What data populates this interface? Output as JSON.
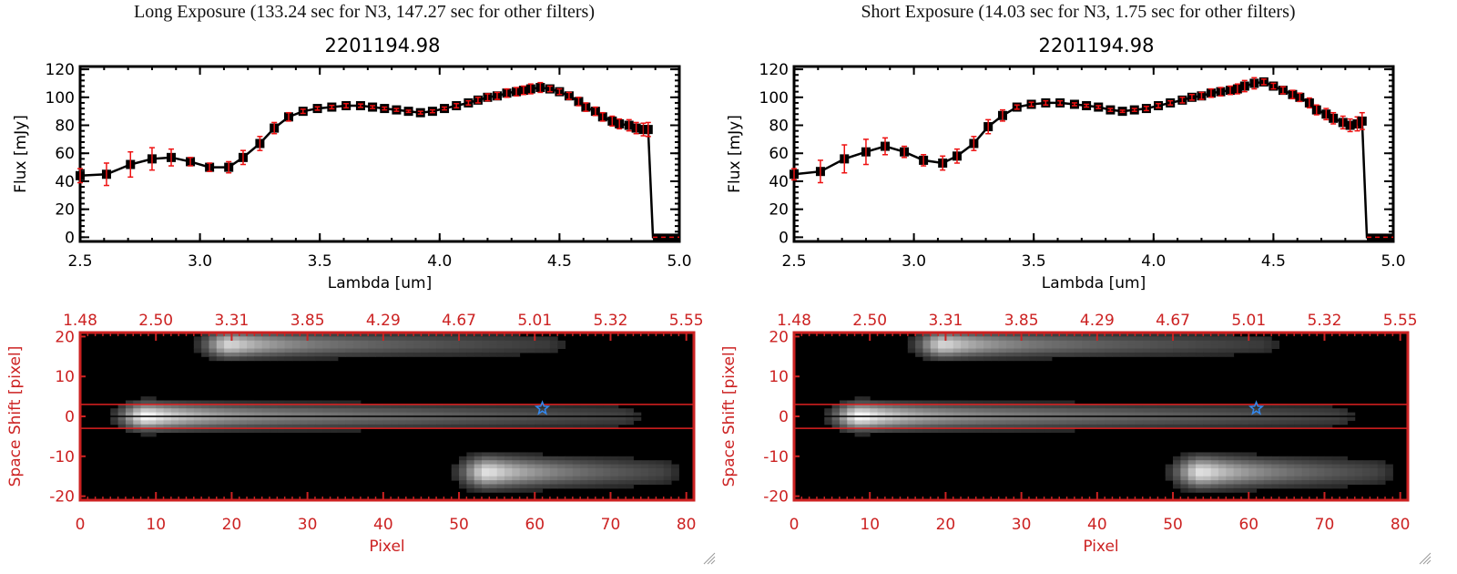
{
  "panels": [
    {
      "id": "long",
      "title": "Long Exposure (133.24 sec for N3, 147.27 sec for other filters)",
      "object_id": "2201194.98"
    },
    {
      "id": "short",
      "title": "Short Exposure (14.03 sec for N3, 1.75 sec for other filters)",
      "object_id": "2201194.98"
    }
  ],
  "colors": {
    "axis_red": "#cc2222",
    "errorbar_red": "#ee1111",
    "line_black": "#000000",
    "star_blue": "#3388ee"
  },
  "chart_data": [
    {
      "type": "line",
      "panel": "long",
      "title": "2201194.98",
      "xlabel": "Lambda [um]",
      "ylabel": "Flux [mJy]",
      "xlim": [
        2.5,
        5.0
      ],
      "ylim": [
        -3,
        122
      ],
      "xticks": [
        "2.5",
        "3.0",
        "3.5",
        "4.0",
        "4.5",
        "5.0"
      ],
      "xtick_values": [
        2.5,
        3.0,
        3.5,
        4.0,
        4.5,
        5.0
      ],
      "yticks": [
        "0",
        "20",
        "40",
        "60",
        "80",
        "100",
        "120"
      ],
      "ytick_values": [
        0,
        20,
        40,
        60,
        80,
        100,
        120
      ],
      "grid": false,
      "series": [
        {
          "name": "flux",
          "x": [
            2.5,
            2.61,
            2.71,
            2.8,
            2.88,
            2.96,
            3.04,
            3.12,
            3.18,
            3.25,
            3.31,
            3.37,
            3.43,
            3.49,
            3.55,
            3.61,
            3.67,
            3.72,
            3.77,
            3.82,
            3.87,
            3.92,
            3.97,
            4.02,
            4.07,
            4.12,
            4.16,
            4.2,
            4.24,
            4.28,
            4.32,
            4.35,
            4.38,
            4.42,
            4.46,
            4.5,
            4.54,
            4.58,
            4.61,
            4.65,
            4.68,
            4.72,
            4.75,
            4.79,
            4.82,
            4.85,
            4.87
          ],
          "y": [
            44,
            45,
            52,
            56,
            57,
            54,
            50,
            50,
            57,
            67,
            78,
            86,
            90,
            92,
            93,
            94,
            94,
            93,
            92,
            91,
            90,
            89,
            90,
            92,
            94,
            96,
            98,
            100,
            101,
            103,
            104,
            105,
            106,
            107,
            106,
            104,
            101,
            97,
            93,
            90,
            86,
            83,
            81,
            80,
            78,
            77,
            77
          ],
          "yerr": [
            5,
            8,
            9,
            8,
            6,
            3,
            3,
            4,
            5,
            5,
            4,
            3,
            1.5,
            1.2,
            1.2,
            1.5,
            1.2,
            1,
            1,
            1,
            0.8,
            1,
            1,
            1,
            1.5,
            1.5,
            2,
            2.5,
            2.5,
            3,
            3,
            3,
            3.5,
            3.5,
            2,
            2,
            2.5,
            3,
            3,
            3,
            3,
            3.5,
            3.5,
            4,
            4,
            4.5,
            5
          ]
        }
      ],
      "cutoff": {
        "x_start": 4.87,
        "x_zero": 4.89,
        "y_zero": 0
      }
    },
    {
      "type": "line",
      "panel": "short",
      "title": "2201194.98",
      "xlabel": "Lambda [um]",
      "ylabel": "Flux [mJy]",
      "xlim": [
        2.5,
        5.0
      ],
      "ylim": [
        -3,
        122
      ],
      "xticks": [
        "2.5",
        "3.0",
        "3.5",
        "4.0",
        "4.5",
        "5.0"
      ],
      "xtick_values": [
        2.5,
        3.0,
        3.5,
        4.0,
        4.5,
        5.0
      ],
      "yticks": [
        "0",
        "20",
        "40",
        "60",
        "80",
        "100",
        "120"
      ],
      "ytick_values": [
        0,
        20,
        40,
        60,
        80,
        100,
        120
      ],
      "grid": false,
      "series": [
        {
          "name": "flux",
          "x": [
            2.5,
            2.61,
            2.71,
            2.8,
            2.88,
            2.96,
            3.04,
            3.12,
            3.18,
            3.25,
            3.31,
            3.37,
            3.43,
            3.49,
            3.55,
            3.61,
            3.67,
            3.72,
            3.77,
            3.82,
            3.87,
            3.92,
            3.97,
            4.02,
            4.07,
            4.12,
            4.16,
            4.2,
            4.24,
            4.28,
            4.32,
            4.35,
            4.38,
            4.42,
            4.46,
            4.5,
            4.54,
            4.58,
            4.61,
            4.65,
            4.68,
            4.72,
            4.75,
            4.79,
            4.82,
            4.85,
            4.87
          ],
          "y": [
            45,
            47,
            56,
            61,
            65,
            61,
            55,
            53,
            58,
            67,
            79,
            87,
            93,
            95,
            96,
            96,
            95,
            94,
            93,
            91,
            90,
            91,
            92,
            94,
            96,
            98,
            100,
            101,
            103,
            104,
            105,
            106,
            108,
            110,
            111,
            108,
            105,
            102,
            100,
            96,
            91,
            88,
            85,
            82,
            80,
            81,
            83
          ],
          "yerr": [
            4,
            8,
            10,
            9,
            6,
            4,
            4,
            5,
            5,
            5,
            5,
            4,
            1.5,
            1.5,
            1.5,
            1.5,
            1,
            1,
            1,
            1,
            0.8,
            1,
            1.5,
            1.5,
            1.5,
            2,
            2,
            2.5,
            3,
            3,
            3,
            3.5,
            4,
            4,
            2,
            2,
            2.5,
            3,
            3,
            3.5,
            3.5,
            4,
            4,
            4.5,
            4.5,
            5,
            6
          ]
        }
      ],
      "cutoff": {
        "x_start": 4.87,
        "x_zero": 4.89,
        "y_zero": 0
      }
    },
    {
      "type": "heatmap",
      "panel": "long",
      "xlabel": "Pixel",
      "ylabel": "Space Shift [pixel]",
      "xlim": [
        0,
        81
      ],
      "ylim": [
        -21,
        21
      ],
      "xticks": [
        "0",
        "10",
        "20",
        "30",
        "40",
        "50",
        "60",
        "70",
        "80"
      ],
      "xtick_values": [
        0,
        10,
        20,
        30,
        40,
        50,
        60,
        70,
        80
      ],
      "top_xticks": [
        "1.48",
        "2.50",
        "3.31",
        "3.85",
        "4.29",
        "4.67",
        "5.01",
        "5.32",
        "5.55"
      ],
      "yticks": [
        "-20",
        "-10",
        "0",
        "10",
        "20"
      ],
      "ytick_values": [
        -20,
        -10,
        0,
        10,
        20
      ],
      "aperture_lines": [
        3,
        -3
      ],
      "center_line": 0,
      "star_marker": {
        "x": 61,
        "y": 2
      },
      "sources": [
        {
          "name": "main-trace",
          "x_start": 2,
          "x_end": 76,
          "y_center": 0,
          "half_width": 3,
          "peak_x": 9,
          "peak": 1.0
        },
        {
          "name": "upper-trace",
          "x_start": 16,
          "x_end": 66,
          "y_center": 18,
          "half_width": 3,
          "peak_x": 20,
          "peak": 0.85
        },
        {
          "name": "lower-trace",
          "x_start": 36,
          "x_end": 81,
          "y_center": -14,
          "half_width": 3.5,
          "peak_x": 54,
          "peak": 0.9
        }
      ]
    },
    {
      "type": "heatmap",
      "panel": "short",
      "xlabel": "Pixel",
      "ylabel": "Space Shift [pixel]",
      "xlim": [
        0,
        81
      ],
      "ylim": [
        -21,
        21
      ],
      "xticks": [
        "0",
        "10",
        "20",
        "30",
        "40",
        "50",
        "60",
        "70",
        "80"
      ],
      "xtick_values": [
        0,
        10,
        20,
        30,
        40,
        50,
        60,
        70,
        80
      ],
      "top_xticks": [
        "1.48",
        "2.50",
        "3.31",
        "3.85",
        "4.29",
        "4.67",
        "5.01",
        "5.32",
        "5.55"
      ],
      "yticks": [
        "-20",
        "-10",
        "0",
        "10",
        "20"
      ],
      "ytick_values": [
        -20,
        -10,
        0,
        10,
        20
      ],
      "aperture_lines": [
        3,
        -3
      ],
      "center_line": 0,
      "star_marker": {
        "x": 61,
        "y": 2
      },
      "sources": [
        {
          "name": "main-trace",
          "x_start": 2,
          "x_end": 76,
          "y_center": 0,
          "half_width": 3,
          "peak_x": 9,
          "peak": 1.0
        },
        {
          "name": "upper-trace",
          "x_start": 16,
          "x_end": 66,
          "y_center": 18,
          "half_width": 3,
          "peak_x": 20,
          "peak": 0.85
        },
        {
          "name": "lower-trace",
          "x_start": 36,
          "x_end": 81,
          "y_center": -14,
          "half_width": 3.5,
          "peak_x": 54,
          "peak": 0.9
        }
      ]
    }
  ]
}
